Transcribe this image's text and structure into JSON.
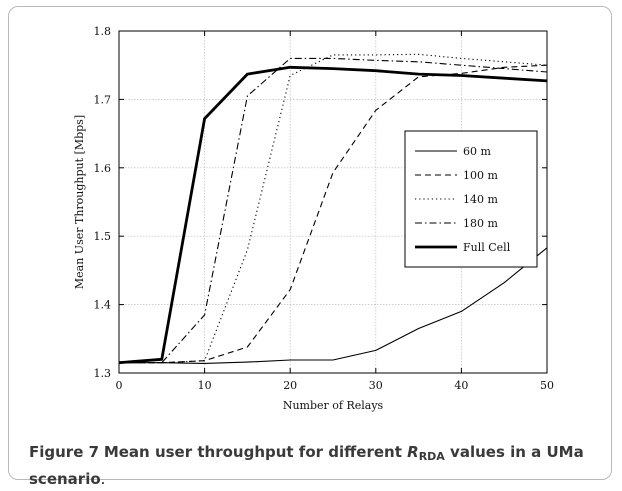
{
  "chart_data": {
    "type": "line",
    "xlabel": "Number of Relays",
    "ylabel": "Mean User Throughput [Mbps]",
    "xlim": [
      0,
      50
    ],
    "ylim": [
      1.3,
      1.8
    ],
    "xticks": [
      0,
      10,
      20,
      30,
      40,
      50
    ],
    "yticks": [
      1.3,
      1.4,
      1.5,
      1.6,
      1.7,
      1.8
    ],
    "xtick_labels": [
      "0",
      "10",
      "20",
      "30",
      "40",
      "50"
    ],
    "ytick_labels": [
      "1.3",
      "1.4",
      "1.5",
      "1.6",
      "1.7",
      "1.8"
    ],
    "grid": true,
    "legend_position": "center-right",
    "series": [
      {
        "name": "60 m",
        "style": "solid",
        "x": [
          0,
          5,
          10,
          15,
          20,
          25,
          30,
          35,
          40,
          45,
          50
        ],
        "y": [
          1.315,
          1.315,
          1.314,
          1.316,
          1.319,
          1.319,
          1.333,
          1.365,
          1.39,
          1.432,
          1.483
        ]
      },
      {
        "name": "100 m",
        "style": "dashed",
        "x": [
          0,
          5,
          10,
          15,
          20,
          25,
          30,
          35,
          40,
          45,
          50
        ],
        "y": [
          1.315,
          1.315,
          1.318,
          1.338,
          1.422,
          1.593,
          1.684,
          1.733,
          1.738,
          1.747,
          1.75
        ]
      },
      {
        "name": "140 m",
        "style": "dotted",
        "x": [
          0,
          5,
          10,
          15,
          20,
          25,
          30,
          35,
          40,
          45,
          50
        ],
        "y": [
          1.315,
          1.315,
          1.318,
          1.48,
          1.735,
          1.765,
          1.765,
          1.766,
          1.76,
          1.755,
          1.75
        ]
      },
      {
        "name": "180 m",
        "style": "dashdot",
        "x": [
          0,
          5,
          10,
          15,
          20,
          25,
          30,
          35,
          40,
          45,
          50
        ],
        "y": [
          1.315,
          1.315,
          1.385,
          1.705,
          1.76,
          1.76,
          1.757,
          1.755,
          1.75,
          1.745,
          1.74
        ]
      },
      {
        "name": "Full Cell",
        "style": "thick",
        "x": [
          0,
          5,
          10,
          15,
          20,
          25,
          30,
          35,
          40,
          45,
          50
        ],
        "y": [
          1.315,
          1.32,
          1.672,
          1.737,
          1.747,
          1.745,
          1.742,
          1.737,
          1.735,
          1.731,
          1.727
        ]
      }
    ]
  },
  "caption": {
    "label": "Figure 7",
    "title_before": "Mean user throughput for different",
    "symbol": "R",
    "symbol_subscript": "RDA",
    "title_after": "values in a UMa scenario",
    "end": "."
  }
}
